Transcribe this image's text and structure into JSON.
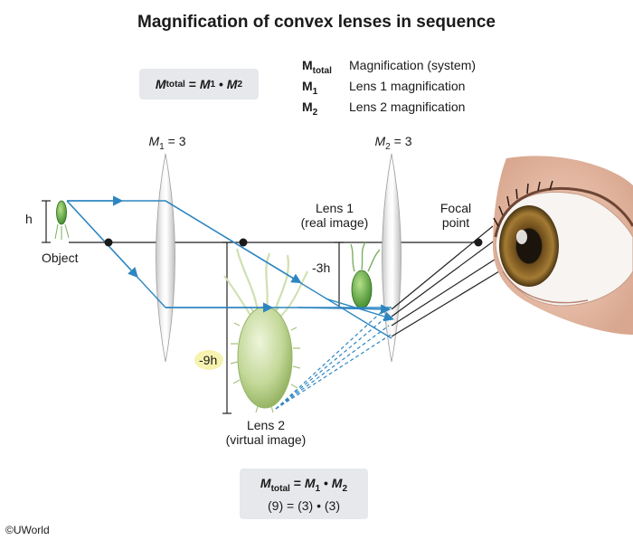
{
  "title": "Magnification of convex lenses in sequence",
  "top_formula": {
    "lhs": "M",
    "lhs_sub": "total",
    "eq": " = ",
    "m1": "M",
    "m1_sub": "1",
    "dot": " • ",
    "m2": "M",
    "m2_sub": "2"
  },
  "legend": [
    {
      "sym": "M",
      "sub": "total",
      "desc": "Magnification (system)"
    },
    {
      "sym": "M",
      "sub": "1",
      "desc": "Lens 1 magnification"
    },
    {
      "sym": "M",
      "sub": "2",
      "desc": "Lens 2 magnification"
    }
  ],
  "lens1_label": {
    "sym": "M",
    "sub": "1",
    "val": " = 3"
  },
  "lens2_label": {
    "sym": "M",
    "sub": "2",
    "val": " = 3"
  },
  "labels": {
    "h": "h",
    "object": "Object",
    "lens1_image_line1": "Lens 1",
    "lens1_image_line2": "(real image)",
    "focal_line1": "Focal",
    "focal_line2": "point",
    "minus3h": "-3h",
    "minus9h": "-9h",
    "lens2_image_line1": "Lens 2",
    "lens2_image_line2": "(virtual image)"
  },
  "bottom_formula": {
    "lhs": "M",
    "lhs_sub": "total",
    "eq": " = ",
    "m1": "M",
    "m1_sub": "1",
    "dot": " • ",
    "m2": "M",
    "m2_sub": "2",
    "numeric": "(9) = (3) • (3)"
  },
  "copyright": "©UWorld",
  "colors": {
    "ray": "#2e86c1",
    "axis": "#222222",
    "bacteria": "#b9d08a",
    "formula_bg": "#e6e8eb",
    "highlight": "#f6f3b0",
    "iris": "#8a6a2a"
  }
}
